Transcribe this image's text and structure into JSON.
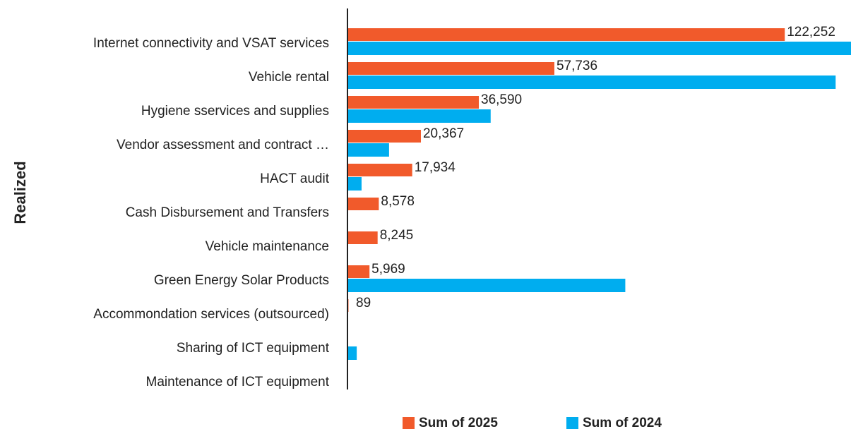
{
  "chart_data": {
    "type": "hbar",
    "y_label": "Realized",
    "categories": [
      "Internet connectivity and VSAT services",
      "Vehicle rental",
      "Hygiene sservices and supplies",
      "Vendor assessment and contract …",
      "HACT audit",
      "Cash Disbursement and Transfers",
      "Vehicle maintenance",
      "Green Energy Solar Products",
      "Accommondation services (outsourced)",
      "Sharing of ICT equipment",
      "Maintenance of ICT equipment"
    ],
    "series": [
      {
        "name": "Sum of 2025",
        "color": "#f15a2b",
        "values": [
          122252,
          57736,
          36590,
          20367,
          17934,
          8578,
          8245,
          5969,
          89,
          null,
          null
        ],
        "value_labels": [
          "122,252",
          "57,736",
          "36,590",
          "20,367",
          "17,934",
          "8,578",
          "8,245",
          "5,969",
          "89",
          null,
          null
        ]
      },
      {
        "name": "Sum of 2024",
        "color": "#00adef",
        "values": [
          140800,
          136500,
          39900,
          11450,
          3750,
          null,
          null,
          77600,
          null,
          2400,
          null
        ]
      }
    ],
    "xlim": [
      0,
      140800
    ],
    "legend": "bottom"
  }
}
